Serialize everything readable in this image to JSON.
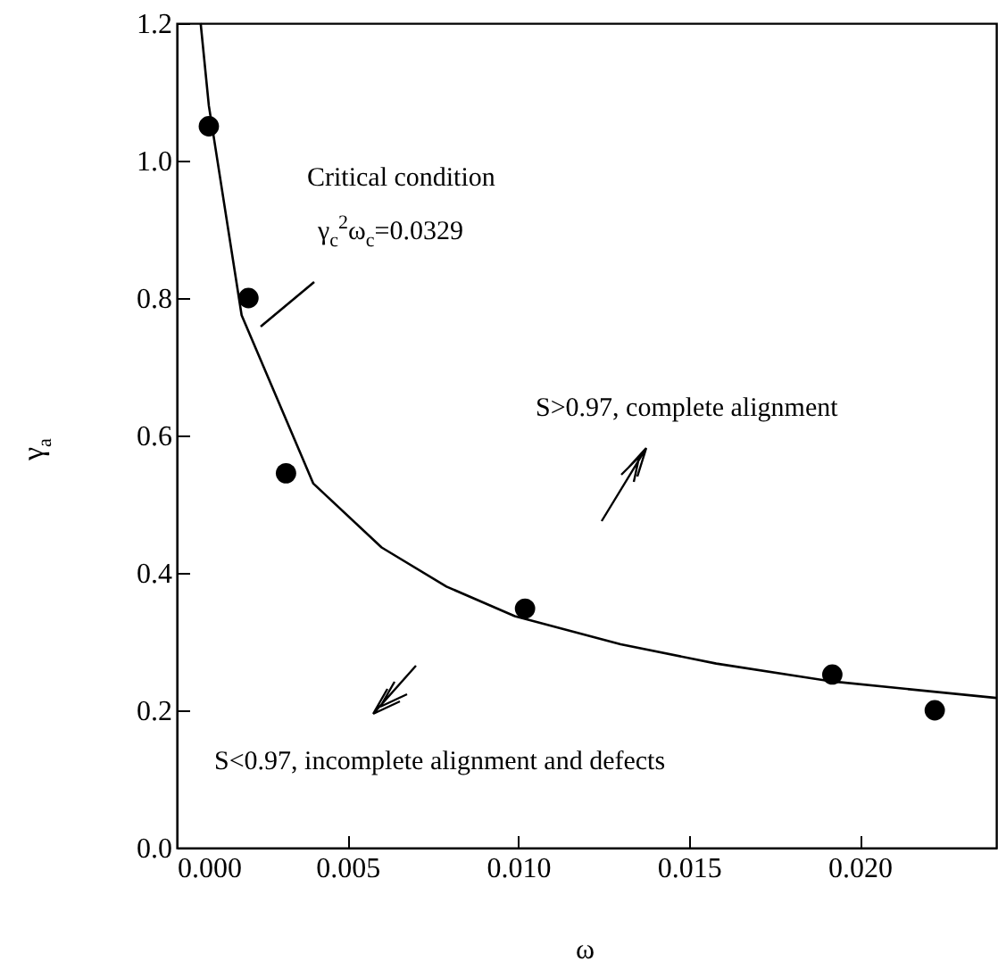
{
  "chart_data": {
    "type": "scatter",
    "xlabel": "ω",
    "ylabel": "γ$_{a}$",
    "xlim": [
      0,
      0.024
    ],
    "ylim": [
      0,
      1.2
    ],
    "xticks": [
      {
        "value": 0,
        "label": "0.000"
      },
      {
        "value": 0.005,
        "label": "0.005"
      },
      {
        "value": 0.01,
        "label": "0.010"
      },
      {
        "value": 0.015,
        "label": "0.015"
      },
      {
        "value": 0.02,
        "label": "0.020"
      }
    ],
    "yticks": [
      {
        "value": 0,
        "label": "0.0"
      },
      {
        "value": 0.2,
        "label": "0.2"
      },
      {
        "value": 0.4,
        "label": "0.4"
      },
      {
        "value": 0.6,
        "label": "0.6"
      },
      {
        "value": 0.8,
        "label": "0.8"
      },
      {
        "value": 1,
        "label": "1.0"
      },
      {
        "value": 1.2,
        "label": "1.2"
      }
    ],
    "grid": false,
    "series": [
      {
        "type": "line",
        "color": "#000000",
        "marker": "none",
        "line_style": "solid",
        "x": [
          0.0007,
          0.00094,
          0.0019,
          0.004,
          0.006,
          0.0079,
          0.0099,
          0.013,
          0.0158,
          0.0192,
          0.024
        ],
        "values": [
          1.2,
          1.08,
          0.775,
          0.53,
          0.437,
          0.38,
          0.337,
          0.296,
          0.268,
          0.242,
          0.218
        ]
      },
      {
        "type": "scatter",
        "color": "#000000",
        "marker": "circle",
        "x": [
          0.00094,
          0.0021,
          0.0032,
          0.0102,
          0.0192,
          0.0222
        ],
        "values": [
          1.05,
          0.8,
          0.545,
          0.348,
          0.252,
          0.2
        ]
      }
    ],
    "annotations": [
      "Critical condition",
      "γ$_{c}$$^{2}$ω$_{c}$=0.0329",
      "S>0.97, complete alignment",
      "S<0.97, incomplete alignment and defects"
    ]
  }
}
